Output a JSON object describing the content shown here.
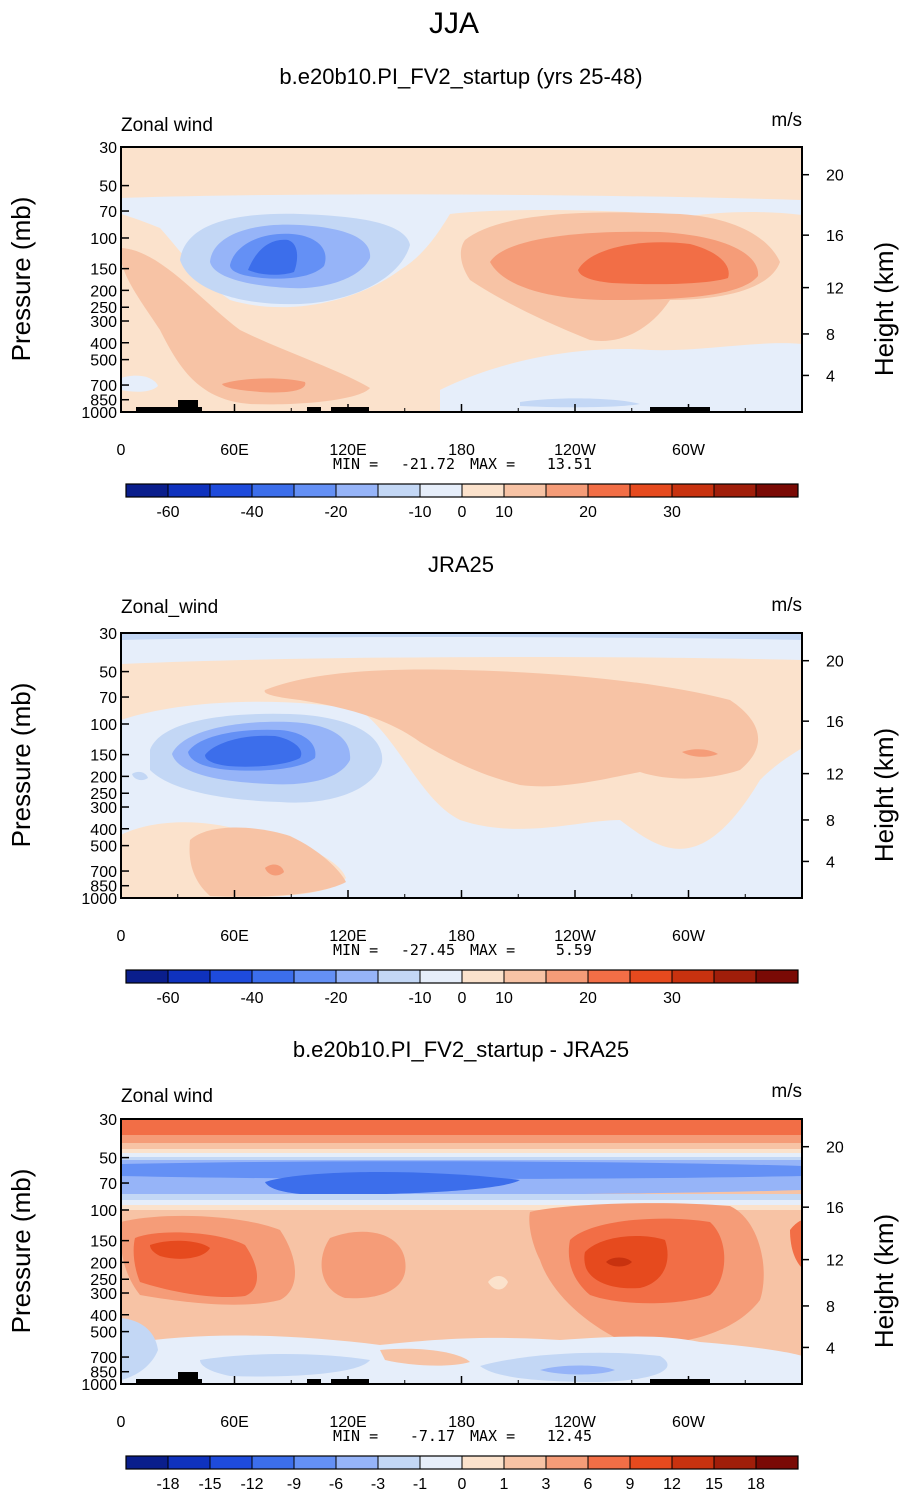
{
  "figure_title": "JJA",
  "colors": {
    "ocean_bg": "#FBE2CC",
    "land": "#000000"
  },
  "chart_data": [
    {
      "type": "contour",
      "title": "b.e20b10.PI_FV2_startup (yrs 25-48)",
      "variable_label": "Zonal wind",
      "units": "m/s",
      "ylabel": "Pressure (mb)",
      "right_label": "Height (km)",
      "pressure_ticks": [
        "30",
        "50",
        "70",
        "100",
        "150",
        "200",
        "250",
        "300",
        "400",
        "500",
        "700",
        "850",
        "1000"
      ],
      "height_ticks": [
        "20",
        "16",
        "12",
        "8",
        "4"
      ],
      "lon_ticks": [
        "0",
        "60E",
        "120E",
        "180",
        "120W",
        "60W"
      ],
      "min_label": "MIN =",
      "min_value": "-21.72",
      "max_label": "MAX =",
      "max_value": "13.51",
      "colorbar_labels": [
        "-60",
        "-40",
        "-20",
        "-10",
        "0",
        "10",
        "20",
        "30"
      ],
      "colorbar_colors": [
        "#0A1E8C",
        "#0F32BE",
        "#1E4BDC",
        "#3C6EEB",
        "#6490F5",
        "#96B4F8",
        "#C3D7F5",
        "#E6EEFA",
        "#FBE2CC",
        "#F7C3A5",
        "#F59C78",
        "#F26E46",
        "#E64A1E",
        "#C8320F",
        "#A01E0A",
        "#7A0A05"
      ],
      "colorbar_tick_positions": [
        1,
        3,
        5,
        7,
        8,
        9,
        11,
        13
      ],
      "min_wind": -21.72,
      "max_wind": 13.51
    },
    {
      "type": "contour",
      "title": "JRA25",
      "variable_label": "Zonal_wind",
      "units": "m/s",
      "ylabel": "Pressure (mb)",
      "right_label": "Height (km)",
      "pressure_ticks": [
        "30",
        "50",
        "70",
        "100",
        "150",
        "200",
        "250",
        "300",
        "400",
        "500",
        "700",
        "850",
        "1000"
      ],
      "height_ticks": [
        "20",
        "16",
        "12",
        "8",
        "4"
      ],
      "lon_ticks": [
        "0",
        "60E",
        "120E",
        "180",
        "120W",
        "60W"
      ],
      "min_label": "MIN =",
      "min_value": "-27.45",
      "max_label": "MAX =",
      "max_value": "5.59",
      "colorbar_labels": [
        "-60",
        "-40",
        "-20",
        "-10",
        "0",
        "10",
        "20",
        "30"
      ],
      "colorbar_colors": [
        "#0A1E8C",
        "#0F32BE",
        "#1E4BDC",
        "#3C6EEB",
        "#6490F5",
        "#96B4F8",
        "#C3D7F5",
        "#E6EEFA",
        "#FBE2CC",
        "#F7C3A5",
        "#F59C78",
        "#F26E46",
        "#E64A1E",
        "#C8320F",
        "#A01E0A",
        "#7A0A05"
      ],
      "colorbar_tick_positions": [
        1,
        3,
        5,
        7,
        8,
        9,
        11,
        13
      ],
      "min_wind": -27.45,
      "max_wind": 5.59
    },
    {
      "type": "contour",
      "title": "b.e20b10.PI_FV2_startup - JRA25",
      "variable_label": "Zonal wind",
      "units": "m/s",
      "ylabel": "Pressure (mb)",
      "right_label": "Height (km)",
      "pressure_ticks": [
        "30",
        "50",
        "70",
        "100",
        "150",
        "200",
        "250",
        "300",
        "400",
        "500",
        "700",
        "850",
        "1000"
      ],
      "height_ticks": [
        "20",
        "16",
        "12",
        "8",
        "4"
      ],
      "lon_ticks": [
        "0",
        "60E",
        "120E",
        "180",
        "120W",
        "60W"
      ],
      "min_label": "MIN =",
      "min_value": "-7.17",
      "max_label": "MAX =",
      "max_value": "12.45",
      "colorbar_labels": [
        "-18",
        "-15",
        "-12",
        "-9",
        "-6",
        "-3",
        "-1",
        "0",
        "1",
        "3",
        "6",
        "9",
        "12",
        "15",
        "18"
      ],
      "colorbar_colors": [
        "#0A1E8C",
        "#0F32BE",
        "#1E4BDC",
        "#3C6EEB",
        "#6490F5",
        "#96B4F8",
        "#C3D7F5",
        "#E6EEFA",
        "#FBE2CC",
        "#F7C3A5",
        "#F59C78",
        "#F26E46",
        "#E64A1E",
        "#C8320F",
        "#A01E0A",
        "#7A0A05"
      ],
      "colorbar_tick_positions": [
        1,
        2,
        3,
        4,
        5,
        6,
        7,
        8,
        9,
        10,
        11,
        12,
        13,
        14,
        15
      ],
      "min_wind": -7.17,
      "max_wind": 12.45
    }
  ]
}
